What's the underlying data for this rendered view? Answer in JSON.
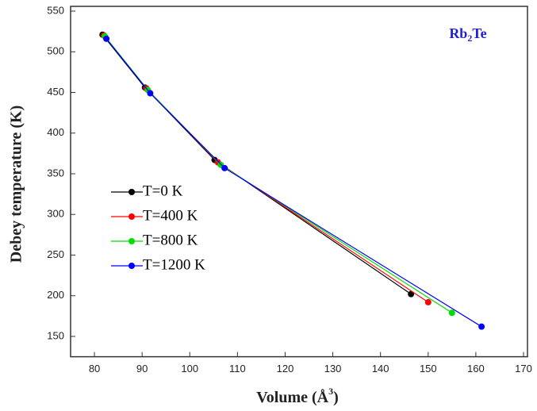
{
  "chart_data": {
    "type": "line",
    "annotation": [
      "Rb",
      "2",
      "Te"
    ],
    "x_label": [
      "Volume (Å",
      "3",
      ")"
    ],
    "y_label": "Debey temperature (K)",
    "xlim": [
      75,
      170
    ],
    "xticks": [
      80,
      90,
      100,
      110,
      120,
      130,
      140,
      150,
      160,
      170
    ],
    "ylim": [
      125,
      550
    ],
    "yticks": [
      150,
      200,
      250,
      300,
      350,
      400,
      450,
      500,
      550
    ],
    "legend": "left",
    "series": [
      {
        "name": "T=0 K",
        "color": "#000000",
        "x": [
          81.7,
          90.6,
          105.2,
          146.4
        ],
        "values": [
          521,
          456,
          367,
          202
        ]
      },
      {
        "name": "T=400 K",
        "color": "#ff0000",
        "x": [
          82.0,
          90.9,
          105.9,
          150.0
        ],
        "values": [
          520,
          455,
          364,
          192
        ]
      },
      {
        "name": "T=800 K",
        "color": "#00dd00",
        "x": [
          82.2,
          91.2,
          106.5,
          155.0
        ],
        "values": [
          519,
          453,
          361,
          179
        ]
      },
      {
        "name": "T=1200 K",
        "color": "#0000ff",
        "x": [
          82.5,
          91.7,
          107.3,
          161.2
        ],
        "values": [
          516,
          449,
          357,
          162
        ]
      }
    ]
  }
}
